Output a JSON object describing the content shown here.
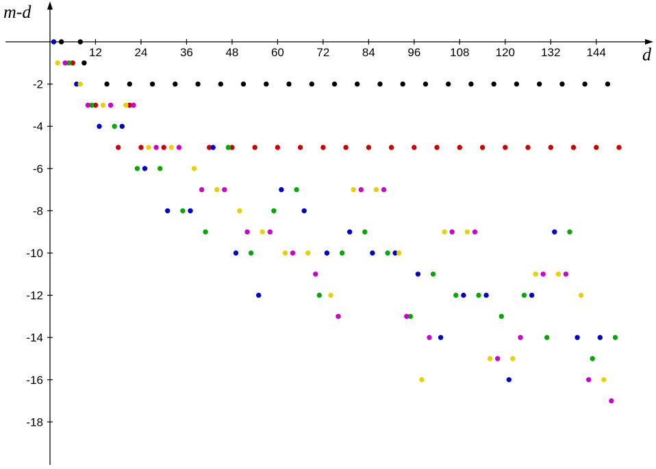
{
  "chart_data": {
    "type": "scatter",
    "title": "",
    "xlabel": "d",
    "ylabel": "m-d",
    "xlim": [
      0,
      158
    ],
    "ylim": [
      -19.7,
      1.5
    ],
    "x_ticks": [
      12,
      24,
      36,
      48,
      60,
      72,
      84,
      96,
      108,
      120,
      132,
      144
    ],
    "y_ticks": [
      -2,
      -4,
      -6,
      -8,
      -10,
      -12,
      -14,
      -16,
      -18
    ],
    "colors": {
      "black": "#000000",
      "blue": "#0000cc",
      "green": "#00aa00",
      "yellow": "#e6d200",
      "magenta": "#cc00cc",
      "red": "#cc0000"
    },
    "series": [
      {
        "color": "black",
        "points": [
          [
            3,
            0
          ],
          [
            8,
            0
          ],
          [
            9,
            -1
          ],
          [
            15,
            -2
          ],
          [
            21,
            -2
          ],
          [
            27,
            -2
          ],
          [
            33,
            -2
          ],
          [
            39,
            -2
          ],
          [
            45,
            -2
          ],
          [
            51,
            -2
          ],
          [
            57,
            -2
          ],
          [
            63,
            -2
          ],
          [
            69,
            -2
          ],
          [
            75,
            -2
          ],
          [
            81,
            -2
          ],
          [
            87,
            -2
          ],
          [
            93,
            -2
          ],
          [
            99,
            -2
          ],
          [
            105,
            -2
          ],
          [
            111,
            -2
          ],
          [
            117,
            -2
          ],
          [
            123,
            -2
          ],
          [
            129,
            -2
          ],
          [
            135,
            -2
          ],
          [
            141,
            -2
          ],
          [
            147,
            -2
          ]
        ]
      },
      {
        "color": "red",
        "points": [
          [
            6,
            -1
          ],
          [
            12,
            -3
          ],
          [
            18,
            -5
          ],
          [
            21,
            -3
          ],
          [
            24,
            -5
          ],
          [
            30,
            -5
          ],
          [
            42,
            -5
          ],
          [
            48,
            -5
          ],
          [
            54,
            -5
          ],
          [
            60,
            -5
          ],
          [
            66,
            -5
          ],
          [
            72,
            -5
          ],
          [
            78,
            -5
          ],
          [
            84,
            -5
          ],
          [
            90,
            -5
          ],
          [
            96,
            -5
          ],
          [
            102,
            -5
          ],
          [
            108,
            -5
          ],
          [
            114,
            -5
          ],
          [
            120,
            -5
          ],
          [
            126,
            -5
          ],
          [
            132,
            -5
          ],
          [
            138,
            -5
          ],
          [
            144,
            -5
          ],
          [
            150,
            -5
          ]
        ]
      },
      {
        "color": "blue",
        "points": [
          [
            1,
            0
          ],
          [
            7,
            -2
          ],
          [
            13,
            -4
          ],
          [
            19,
            -4
          ],
          [
            25,
            -6
          ],
          [
            31,
            -8
          ],
          [
            37,
            -8
          ],
          [
            43,
            -5
          ],
          [
            49,
            -10
          ],
          [
            55,
            -12
          ],
          [
            61,
            -7
          ],
          [
            67,
            -8
          ],
          [
            73,
            -10
          ],
          [
            79,
            -9
          ],
          [
            85,
            -10
          ],
          [
            91,
            -10
          ],
          [
            97,
            -11
          ],
          [
            103,
            -14
          ],
          [
            109,
            -12
          ],
          [
            115,
            -12
          ],
          [
            121,
            -16
          ],
          [
            127,
            -12
          ],
          [
            133,
            -9
          ],
          [
            139,
            -14
          ],
          [
            145,
            -14
          ]
        ]
      },
      {
        "color": "green",
        "points": [
          [
            5,
            -1
          ],
          [
            11,
            -3
          ],
          [
            17,
            -4
          ],
          [
            23,
            -6
          ],
          [
            29,
            -6
          ],
          [
            35,
            -8
          ],
          [
            41,
            -9
          ],
          [
            47,
            -5
          ],
          [
            53,
            -10
          ],
          [
            59,
            -8
          ],
          [
            65,
            -7
          ],
          [
            71,
            -12
          ],
          [
            77,
            -10
          ],
          [
            83,
            -9
          ],
          [
            89,
            -10
          ],
          [
            95,
            -13
          ],
          [
            101,
            -11
          ],
          [
            107,
            -12
          ],
          [
            113,
            -12
          ],
          [
            119,
            -13
          ],
          [
            125,
            -12
          ],
          [
            131,
            -14
          ],
          [
            137,
            -9
          ],
          [
            143,
            -15
          ],
          [
            149,
            -14
          ]
        ]
      },
      {
        "color": "yellow",
        "points": [
          [
            2,
            -1
          ],
          [
            8,
            -2
          ],
          [
            14,
            -3
          ],
          [
            20,
            -3
          ],
          [
            26,
            -5
          ],
          [
            32,
            -5
          ],
          [
            38,
            -6
          ],
          [
            44,
            -7
          ],
          [
            50,
            -8
          ],
          [
            56,
            -9
          ],
          [
            62,
            -10
          ],
          [
            68,
            -10
          ],
          [
            74,
            -12
          ],
          [
            80,
            -7
          ],
          [
            86,
            -7
          ],
          [
            92,
            -10
          ],
          [
            98,
            -16
          ],
          [
            104,
            -9
          ],
          [
            110,
            -9
          ],
          [
            116,
            -15
          ],
          [
            122,
            -15
          ],
          [
            128,
            -11
          ],
          [
            134,
            -11
          ],
          [
            140,
            -12
          ],
          [
            146,
            -16
          ]
        ]
      },
      {
        "color": "magenta",
        "points": [
          [
            4,
            -1
          ],
          [
            10,
            -3
          ],
          [
            16,
            -3
          ],
          [
            22,
            -3
          ],
          [
            28,
            -5
          ],
          [
            34,
            -5
          ],
          [
            40,
            -7
          ],
          [
            46,
            -7
          ],
          [
            52,
            -9
          ],
          [
            58,
            -9
          ],
          [
            64,
            -10
          ],
          [
            70,
            -11
          ],
          [
            76,
            -13
          ],
          [
            82,
            -7
          ],
          [
            88,
            -7
          ],
          [
            94,
            -13
          ],
          [
            100,
            -14
          ],
          [
            106,
            -9
          ],
          [
            112,
            -9
          ],
          [
            118,
            -15
          ],
          [
            124,
            -14
          ],
          [
            130,
            -11
          ],
          [
            136,
            -11
          ],
          [
            142,
            -16
          ],
          [
            148,
            -17
          ]
        ]
      }
    ]
  }
}
